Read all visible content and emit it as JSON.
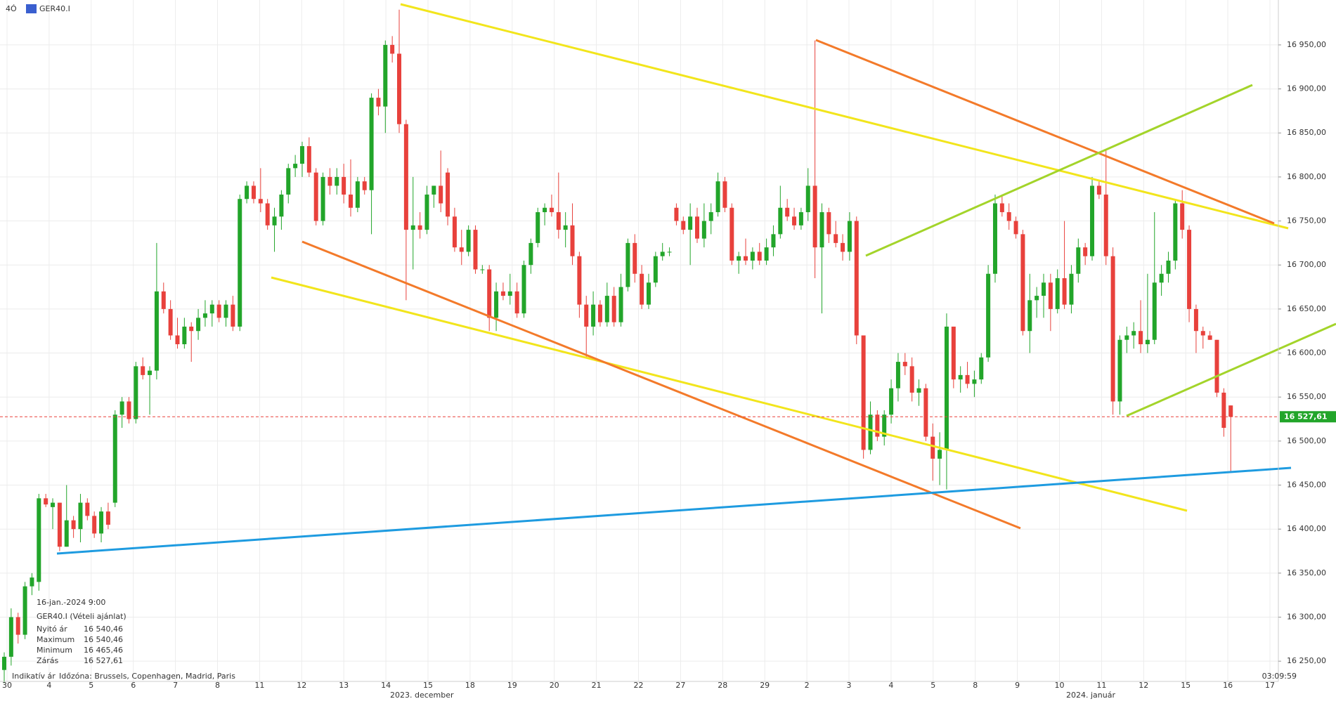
{
  "header": {
    "timeframe": "4Ó",
    "symbol": "GER40.I"
  },
  "chart_data": {
    "type": "candlestick",
    "ylim": [
      16227,
      17001
    ],
    "yticks": [
      {
        "value": 16250,
        "label": "16 250,00"
      },
      {
        "value": 16300,
        "label": "16 300,00"
      },
      {
        "value": 16350,
        "label": "16 350,00"
      },
      {
        "value": 16400,
        "label": "16 400,00"
      },
      {
        "value": 16450,
        "label": "16 450,00"
      },
      {
        "value": 16500,
        "label": "16 500,00"
      },
      {
        "value": 16550,
        "label": "16 550,00"
      },
      {
        "value": 16600,
        "label": "16 600,00"
      },
      {
        "value": 16650,
        "label": "16 650,00"
      },
      {
        "value": 16700,
        "label": "16 700,00"
      },
      {
        "value": 16750,
        "label": "16 750,00"
      },
      {
        "value": 16800,
        "label": "16 800,00"
      },
      {
        "value": 16850,
        "label": "16 850,00"
      },
      {
        "value": 16900,
        "label": "16 900,00"
      },
      {
        "value": 16950,
        "label": "16 950,00"
      }
    ],
    "days": [
      "30",
      "4",
      "5",
      "6",
      "7",
      "8",
      "11",
      "12",
      "13",
      "14",
      "15",
      "18",
      "19",
      "20",
      "21",
      "22",
      "27",
      "28",
      "29",
      "2",
      "3",
      "4",
      "5",
      "8",
      "9",
      "10",
      "11",
      "12",
      "15",
      "16",
      "17"
    ],
    "months": [
      "2023. december",
      "2024. január"
    ],
    "up_color": "#22a52a",
    "down_color": "#e8413c",
    "current_price": {
      "value": 16527.61,
      "label": "16 527,61"
    },
    "ohlc": [
      [
        16240,
        16260,
        16225,
        16255
      ],
      [
        16255,
        16310,
        16245,
        16300
      ],
      [
        16300,
        16305,
        16270,
        16280
      ],
      [
        16280,
        16340,
        16275,
        16335
      ],
      [
        16335,
        16350,
        16325,
        16345
      ],
      [
        16340,
        16440,
        16330,
        16435
      ],
      [
        16435,
        16440,
        16425,
        16428
      ],
      [
        16425,
        16435,
        16400,
        16430
      ],
      [
        16430,
        16430,
        16375,
        16380
      ],
      [
        16380,
        16450,
        16380,
        16410
      ],
      [
        16410,
        16415,
        16390,
        16400
      ],
      [
        16400,
        16440,
        16385,
        16430
      ],
      [
        16430,
        16435,
        16410,
        16415
      ],
      [
        16415,
        16420,
        16390,
        16395
      ],
      [
        16395,
        16425,
        16385,
        16420
      ],
      [
        16420,
        16430,
        16400,
        16405
      ],
      [
        16430,
        16535,
        16425,
        16530
      ],
      [
        16530,
        16550,
        16515,
        16545
      ],
      [
        16545,
        16550,
        16520,
        16525
      ],
      [
        16525,
        16590,
        16520,
        16585
      ],
      [
        16585,
        16595,
        16570,
        16575
      ],
      [
        16575,
        16585,
        16530,
        16580
      ],
      [
        16580,
        16725,
        16570,
        16670
      ],
      [
        16670,
        16680,
        16645,
        16650
      ],
      [
        16650,
        16660,
        16615,
        16620
      ],
      [
        16620,
        16640,
        16605,
        16610
      ],
      [
        16610,
        16640,
        16605,
        16630
      ],
      [
        16630,
        16635,
        16590,
        16625
      ],
      [
        16625,
        16650,
        16615,
        16640
      ],
      [
        16640,
        16660,
        16630,
        16645
      ],
      [
        16645,
        16660,
        16630,
        16655
      ],
      [
        16655,
        16660,
        16635,
        16640
      ],
      [
        16640,
        16660,
        16630,
        16655
      ],
      [
        16655,
        16665,
        16625,
        16630
      ],
      [
        16630,
        16780,
        16625,
        16775
      ],
      [
        16775,
        16795,
        16770,
        16790
      ],
      [
        16790,
        16795,
        16770,
        16775
      ],
      [
        16775,
        16810,
        16760,
        16770
      ],
      [
        16770,
        16775,
        16740,
        16745
      ],
      [
        16745,
        16765,
        16715,
        16755
      ],
      [
        16755,
        16785,
        16740,
        16780
      ],
      [
        16780,
        16815,
        16770,
        16810
      ],
      [
        16810,
        16825,
        16800,
        16815
      ],
      [
        16815,
        16840,
        16800,
        16835
      ],
      [
        16835,
        16845,
        16800,
        16805
      ],
      [
        16805,
        16810,
        16745,
        16750
      ],
      [
        16750,
        16805,
        16745,
        16800
      ],
      [
        16800,
        16810,
        16780,
        16790
      ],
      [
        16790,
        16810,
        16780,
        16800
      ],
      [
        16800,
        16815,
        16770,
        16780
      ],
      [
        16780,
        16820,
        16755,
        16765
      ],
      [
        16765,
        16800,
        16760,
        16795
      ],
      [
        16795,
        16800,
        16780,
        16785
      ],
      [
        16785,
        16895,
        16735,
        16890
      ],
      [
        16890,
        16900,
        16870,
        16880
      ],
      [
        16880,
        16955,
        16850,
        16950
      ],
      [
        16950,
        16960,
        16930,
        16940
      ],
      [
        16940,
        16990,
        16850,
        16860
      ],
      [
        16860,
        16865,
        16660,
        16740
      ],
      [
        16740,
        16800,
        16695,
        16745
      ],
      [
        16745,
        16760,
        16730,
        16740
      ],
      [
        16740,
        16790,
        16735,
        16780
      ],
      [
        16780,
        16790,
        16765,
        16790
      ],
      [
        16790,
        16830,
        16760,
        16770
      ],
      [
        16805,
        16810,
        16745,
        16755
      ],
      [
        16755,
        16765,
        16715,
        16720
      ],
      [
        16720,
        16740,
        16700,
        16715
      ],
      [
        16715,
        16745,
        16710,
        16740
      ],
      [
        16740,
        16745,
        16690,
        16695
      ],
      [
        16695,
        16700,
        16690,
        16695
      ],
      [
        16695,
        16700,
        16625,
        16640
      ],
      [
        16640,
        16680,
        16625,
        16670
      ],
      [
        16670,
        16680,
        16660,
        16665
      ],
      [
        16665,
        16690,
        16655,
        16670
      ],
      [
        16670,
        16680,
        16640,
        16645
      ],
      [
        16645,
        16705,
        16640,
        16700
      ],
      [
        16700,
        16730,
        16690,
        16725
      ],
      [
        16725,
        16765,
        16720,
        16760
      ],
      [
        16760,
        16770,
        16745,
        16765
      ],
      [
        16765,
        16780,
        16755,
        16760
      ],
      [
        16760,
        16805,
        16730,
        16740
      ],
      [
        16740,
        16760,
        16720,
        16745
      ],
      [
        16745,
        16770,
        16700,
        16710
      ],
      [
        16710,
        16715,
        16640,
        16655
      ],
      [
        16655,
        16665,
        16595,
        16630
      ],
      [
        16630,
        16670,
        16620,
        16655
      ],
      [
        16655,
        16660,
        16630,
        16635
      ],
      [
        16635,
        16680,
        16630,
        16665
      ],
      [
        16665,
        16675,
        16630,
        16635
      ],
      [
        16635,
        16690,
        16630,
        16675
      ],
      [
        16675,
        16730,
        16670,
        16725
      ],
      [
        16725,
        16735,
        16680,
        16690
      ],
      [
        16690,
        16700,
        16650,
        16655
      ],
      [
        16655,
        16690,
        16650,
        16680
      ],
      [
        16680,
        16715,
        16675,
        16710
      ],
      [
        16710,
        16725,
        16705,
        16715
      ],
      [
        16715,
        16720,
        16710,
        16715
      ],
      [
        16765,
        16770,
        16745,
        16750
      ],
      [
        16750,
        16755,
        16735,
        16740
      ],
      [
        16740,
        16770,
        16700,
        16755
      ],
      [
        16755,
        16765,
        16725,
        16730
      ],
      [
        16730,
        16770,
        16720,
        16750
      ],
      [
        16750,
        16770,
        16735,
        16760
      ],
      [
        16760,
        16805,
        16755,
        16795
      ],
      [
        16795,
        16800,
        16760,
        16765
      ],
      [
        16765,
        16770,
        16700,
        16705
      ],
      [
        16705,
        16715,
        16690,
        16710
      ],
      [
        16710,
        16730,
        16700,
        16705
      ],
      [
        16705,
        16720,
        16695,
        16715
      ],
      [
        16715,
        16725,
        16700,
        16705
      ],
      [
        16705,
        16730,
        16700,
        16720
      ],
      [
        16720,
        16745,
        16710,
        16735
      ],
      [
        16735,
        16790,
        16730,
        16765
      ],
      [
        16765,
        16775,
        16750,
        16755
      ],
      [
        16755,
        16765,
        16740,
        16745
      ],
      [
        16745,
        16765,
        16740,
        16760
      ],
      [
        16760,
        16810,
        16750,
        16790
      ],
      [
        16790,
        16955,
        16685,
        16720
      ],
      [
        16720,
        16770,
        16645,
        16760
      ],
      [
        16760,
        16765,
        16725,
        16735
      ],
      [
        16735,
        16750,
        16720,
        16725
      ],
      [
        16725,
        16735,
        16705,
        16715
      ],
      [
        16715,
        16760,
        16705,
        16750
      ],
      [
        16750,
        16755,
        16610,
        16620
      ],
      [
        16620,
        16620,
        16480,
        16490
      ],
      [
        16490,
        16545,
        16485,
        16530
      ],
      [
        16530,
        16535,
        16500,
        16505
      ],
      [
        16505,
        16535,
        16495,
        16530
      ],
      [
        16530,
        16570,
        16520,
        16560
      ],
      [
        16560,
        16600,
        16545,
        16590
      ],
      [
        16590,
        16600,
        16575,
        16585
      ],
      [
        16585,
        16595,
        16545,
        16555
      ],
      [
        16555,
        16570,
        16540,
        16560
      ],
      [
        16560,
        16565,
        16500,
        16505
      ],
      [
        16505,
        16520,
        16455,
        16480
      ],
      [
        16480,
        16510,
        16450,
        16490
      ],
      [
        16490,
        16645,
        16445,
        16630
      ],
      [
        16630,
        16630,
        16560,
        16570
      ],
      [
        16570,
        16585,
        16555,
        16575
      ],
      [
        16575,
        16590,
        16560,
        16565
      ],
      [
        16565,
        16580,
        16550,
        16570
      ],
      [
        16570,
        16600,
        16565,
        16595
      ],
      [
        16595,
        16700,
        16590,
        16690
      ],
      [
        16690,
        16780,
        16680,
        16770
      ],
      [
        16770,
        16780,
        16755,
        16760
      ],
      [
        16760,
        16770,
        16740,
        16750
      ],
      [
        16750,
        16755,
        16730,
        16735
      ],
      [
        16735,
        16740,
        16620,
        16625
      ],
      [
        16625,
        16690,
        16600,
        16660
      ],
      [
        16660,
        16675,
        16640,
        16665
      ],
      [
        16665,
        16690,
        16640,
        16680
      ],
      [
        16680,
        16690,
        16625,
        16650
      ],
      [
        16650,
        16695,
        16645,
        16685
      ],
      [
        16685,
        16750,
        16650,
        16655
      ],
      [
        16655,
        16700,
        16645,
        16690
      ],
      [
        16690,
        16730,
        16680,
        16720
      ],
      [
        16720,
        16725,
        16700,
        16710
      ],
      [
        16710,
        16800,
        16705,
        16790
      ],
      [
        16790,
        16795,
        16775,
        16780
      ],
      [
        16780,
        16830,
        16700,
        16710
      ],
      [
        16710,
        16720,
        16530,
        16545
      ],
      [
        16545,
        16620,
        16530,
        16615
      ],
      [
        16615,
        16630,
        16600,
        16620
      ],
      [
        16620,
        16635,
        16605,
        16625
      ],
      [
        16625,
        16660,
        16600,
        16610
      ],
      [
        16610,
        16690,
        16600,
        16615
      ],
      [
        16615,
        16760,
        16610,
        16680
      ],
      [
        16680,
        16700,
        16665,
        16690
      ],
      [
        16690,
        16715,
        16680,
        16705
      ],
      [
        16705,
        16775,
        16695,
        16770
      ],
      [
        16770,
        16785,
        16730,
        16740
      ],
      [
        16740,
        16745,
        16635,
        16650
      ],
      [
        16650,
        16655,
        16600,
        16625
      ],
      [
        16625,
        16630,
        16605,
        16620
      ],
      [
        16620,
        16625,
        16615,
        16615
      ],
      [
        16615,
        16615,
        16550,
        16555
      ],
      [
        16555,
        16560,
        16505,
        16515
      ],
      [
        16540.46,
        16540.46,
        16465.46,
        16527.61
      ]
    ]
  },
  "info": {
    "datetime": "16-jan.-2024 9:00",
    "instrument": "GER40.I (Vételi ajánlat)",
    "rows": [
      [
        "Nyitó ár",
        "16 540,46"
      ],
      [
        "Maximum",
        "16 540,46"
      ],
      [
        "Minimum",
        "16 465,46"
      ],
      [
        "Zárás",
        "16 527,61"
      ]
    ]
  },
  "footer": {
    "price_type": "Indikatív ár",
    "timezone": "Időzóna: Brussels, Copenhagen, Madrid, Paris",
    "clock": "03:09:59"
  }
}
